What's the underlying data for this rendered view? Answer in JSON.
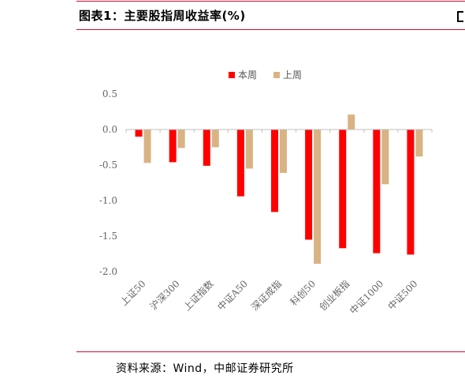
{
  "header": {
    "title": "图表1：主要股指周收益率(%)"
  },
  "footer": {
    "source": "资料来源：Wind，中邮证券研究所"
  },
  "colors": {
    "this_week": "#ff0000",
    "last_week": "#d9b383",
    "rule": "#c8102e"
  },
  "chart_data": {
    "type": "bar",
    "title": "",
    "xlabel": "",
    "ylabel": "",
    "ylim": [
      -2.0,
      0.5
    ],
    "yticks": [
      0.5,
      0.0,
      -0.5,
      -1.0,
      -1.5,
      -2.0
    ],
    "ytick_labels": [
      "0.5",
      "0.0",
      "-0.5",
      "-1.0",
      "-1.5",
      "-2.0"
    ],
    "grid": false,
    "legend_position": "top-center",
    "categories": [
      "上证50",
      "沪深300",
      "上证指数",
      "中证A50",
      "深证成指",
      "科创50",
      "创业板指",
      "中证1000",
      "中证500"
    ],
    "series": [
      {
        "name": "本周",
        "values": [
          -0.1,
          -0.46,
          -0.51,
          -0.94,
          -1.16,
          -1.55,
          -1.67,
          -1.74,
          -1.76
        ]
      },
      {
        "name": "上周",
        "values": [
          -0.47,
          -0.26,
          -0.25,
          -0.55,
          -0.61,
          -1.89,
          0.21,
          -0.77,
          -0.38
        ]
      }
    ]
  }
}
